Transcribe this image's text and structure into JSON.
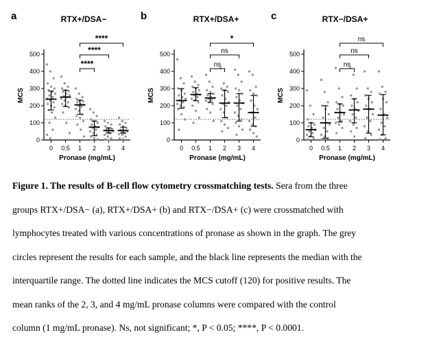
{
  "chart_data": [
    {
      "type": "scatter",
      "panel": "a",
      "title": "RTX+/DSA−",
      "xlabel": "Pronase (mg/mL)",
      "ylabel": "MCS",
      "categories": [
        "0",
        "0.5",
        "1",
        "2",
        "3",
        "4"
      ],
      "yticks": [
        0,
        100,
        200,
        300,
        400,
        500
      ],
      "ylim": [
        0,
        520
      ],
      "cutoff": 120,
      "summary": [
        {
          "median": 238,
          "q1": 175,
          "q3": 285
        },
        {
          "median": 250,
          "q1": 195,
          "q3": 290
        },
        {
          "median": 205,
          "q1": 150,
          "q3": 232
        },
        {
          "median": 75,
          "q1": 25,
          "q3": 110
        },
        {
          "median": 55,
          "q1": 40,
          "q3": 70
        },
        {
          "median": 55,
          "q1": 40,
          "q3": 75
        }
      ],
      "points": [
        [
          440,
          400,
          360,
          330,
          310,
          300,
          290,
          280,
          270,
          260,
          250,
          240,
          230,
          220,
          210,
          200,
          190,
          175,
          160,
          130,
          100,
          60,
          30,
          10
        ],
        [
          370,
          330,
          310,
          300,
          290,
          285,
          280,
          270,
          260,
          255,
          250,
          240,
          230,
          220,
          210,
          200,
          190,
          160,
          100,
          40
        ],
        [
          300,
          270,
          250,
          240,
          230,
          225,
          220,
          210,
          205,
          200,
          195,
          180,
          170,
          150,
          140,
          130,
          110,
          90,
          60,
          20
        ],
        [
          180,
          160,
          140,
          120,
          110,
          100,
          90,
          80,
          75,
          70,
          60,
          50,
          40,
          30,
          20,
          10,
          5,
          0
        ],
        [
          110,
          100,
          90,
          80,
          70,
          65,
          60,
          55,
          50,
          45,
          40,
          30,
          20,
          10,
          5,
          0
        ],
        [
          130,
          110,
          100,
          90,
          80,
          70,
          60,
          55,
          50,
          45,
          40,
          35,
          30,
          20,
          10,
          5
        ]
      ],
      "comparisons": [
        {
          "from": 2,
          "to": 3,
          "label": "****"
        },
        {
          "from": 2,
          "to": 4,
          "label": "****"
        },
        {
          "from": 2,
          "to": 5,
          "label": "****"
        }
      ]
    },
    {
      "type": "scatter",
      "panel": "b",
      "title": "RTX+/DSA+",
      "xlabel": "Pronase (mg/mL)",
      "ylabel": "MCS",
      "categories": [
        "0",
        "0.5",
        "1",
        "2",
        "3",
        "4"
      ],
      "yticks": [
        0,
        100,
        200,
        300,
        400,
        500
      ],
      "ylim": [
        0,
        520
      ],
      "cutoff": 120,
      "summary": [
        {
          "median": 230,
          "q1": 185,
          "q3": 300
        },
        {
          "median": 265,
          "q1": 230,
          "q3": 305
        },
        {
          "median": 245,
          "q1": 220,
          "q3": 270
        },
        {
          "median": 215,
          "q1": 130,
          "q3": 290
        },
        {
          "median": 215,
          "q1": 110,
          "q3": 270
        },
        {
          "median": 160,
          "q1": 80,
          "q3": 260
        }
      ],
      "points": [
        [
          470,
          360,
          330,
          300,
          290,
          270,
          260,
          250,
          240,
          230,
          220,
          210,
          200,
          190,
          180,
          150,
          120,
          60
        ],
        [
          370,
          340,
          320,
          310,
          300,
          290,
          280,
          270,
          265,
          260,
          250,
          240,
          230,
          220,
          200,
          170,
          130,
          100
        ],
        [
          380,
          340,
          310,
          290,
          280,
          270,
          260,
          250,
          245,
          240,
          235,
          230,
          220,
          210,
          180,
          160,
          110
        ],
        [
          420,
          330,
          310,
          300,
          290,
          280,
          260,
          240,
          220,
          210,
          200,
          180,
          160,
          130,
          110,
          90,
          70,
          50
        ],
        [
          410,
          380,
          340,
          300,
          290,
          270,
          250,
          230,
          215,
          200,
          180,
          160,
          140,
          120,
          100,
          80,
          60,
          30
        ],
        [
          400,
          380,
          310,
          290,
          270,
          260,
          230,
          200,
          180,
          160,
          130,
          110,
          90,
          80,
          60,
          40,
          20
        ]
      ],
      "comparisons": [
        {
          "from": 2,
          "to": 3,
          "label": "ns"
        },
        {
          "from": 2,
          "to": 4,
          "label": "ns"
        },
        {
          "from": 2,
          "to": 5,
          "label": "*"
        }
      ]
    },
    {
      "type": "scatter",
      "panel": "c",
      "title": "RTX−/DSA+",
      "xlabel": "Pronase (mg/mL)",
      "ylabel": "MCS",
      "categories": [
        "0",
        "0.5",
        "1",
        "2",
        "3",
        "4"
      ],
      "yticks": [
        0,
        100,
        200,
        300,
        400,
        500
      ],
      "ylim": [
        0,
        520
      ],
      "cutoff": 120,
      "summary": [
        {
          "median": 60,
          "q1": 20,
          "q3": 100
        },
        {
          "median": 100,
          "q1": 10,
          "q3": 200
        },
        {
          "median": 160,
          "q1": 105,
          "q3": 210
        },
        {
          "median": 175,
          "q1": 100,
          "q3": 240
        },
        {
          "median": 180,
          "q1": 40,
          "q3": 260
        },
        {
          "median": 145,
          "q1": 30,
          "q3": 265
        }
      ],
      "points": [
        [
          290,
          200,
          150,
          120,
          100,
          90,
          80,
          70,
          60,
          50,
          40,
          30,
          20,
          10,
          5
        ],
        [
          350,
          280,
          220,
          200,
          180,
          150,
          130,
          100,
          90,
          70,
          50,
          30,
          20,
          10,
          5
        ],
        [
          420,
          300,
          250,
          220,
          210,
          200,
          180,
          160,
          150,
          130,
          110,
          100,
          90,
          70,
          40
        ],
        [
          420,
          380,
          300,
          260,
          240,
          220,
          200,
          180,
          170,
          150,
          130,
          110,
          90,
          70,
          50,
          20
        ],
        [
          400,
          300,
          280,
          260,
          240,
          220,
          200,
          180,
          150,
          130,
          110,
          80,
          50,
          30,
          10
        ],
        [
          400,
          310,
          280,
          270,
          240,
          220,
          180,
          150,
          130,
          100,
          80,
          60,
          30,
          10,
          5
        ]
      ],
      "comparisons": [
        {
          "from": 2,
          "to": 3,
          "label": "ns"
        },
        {
          "from": 2,
          "to": 4,
          "label": "ns"
        },
        {
          "from": 2,
          "to": 5,
          "label": "ns"
        }
      ]
    }
  ],
  "caption": {
    "title": "Figure 1. The results of B-cell flow cytometry crossmatching tests.",
    "lines": [
      " Sera from the three",
      "groups RTX+/DSA− (a), RTX+/DSA+ (b) and RTX−/DSA+ (c) were crossmatched with",
      "lymphocytes treated with various concentrations of pronase as shown in the graph. The grey",
      "circles represent the results for each sample, and the black line represents the median with the",
      "interquartile range. The dotted line indicates the MCS cutoff (120) for positive results. The",
      "mean ranks of the 2, 3, and 4 mg/mL pronase columns were compared with the control",
      "column (1 mg/mL pronase). Ns, not significant; *, P < 0.05; ****, P < 0.0001."
    ]
  },
  "colors": {
    "points": "#9a9a9a",
    "median_line": "#000000",
    "axis": "#000000",
    "cutoff_line": "#555555"
  }
}
